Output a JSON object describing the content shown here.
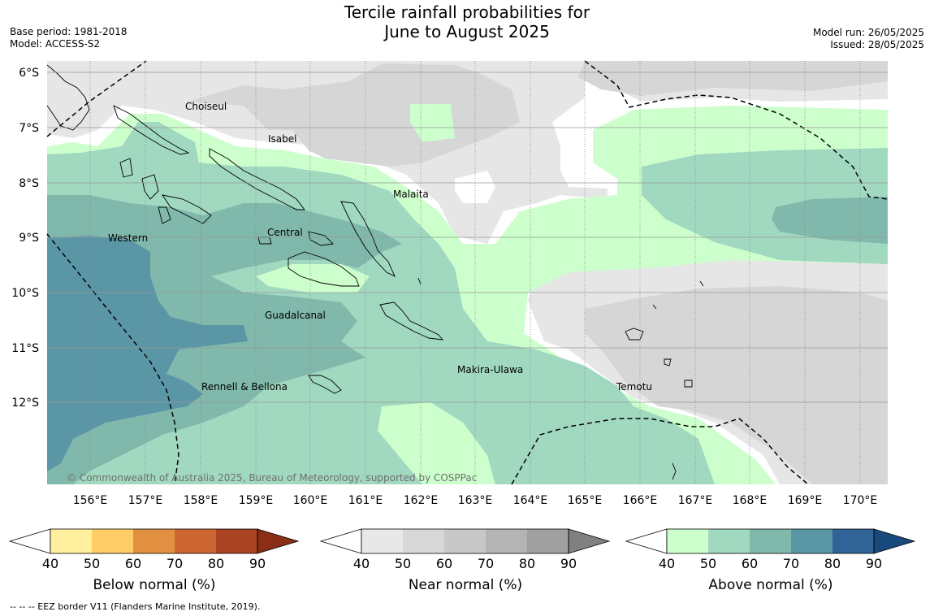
{
  "header": {
    "title_line1": "Tercile rainfall probabilities for",
    "title_line2": "June to August 2025",
    "base_period": "Base period: 1981-2018",
    "model": "Model: ACCESS-S2",
    "model_run": "Model run: 26/05/2025",
    "issued": "Issued: 28/05/2025"
  },
  "map": {
    "lat_labels": [
      "6°S",
      "7°S",
      "8°S",
      "9°S",
      "10°S",
      "11°S",
      "12°S"
    ],
    "lon_labels": [
      "156°E",
      "157°E",
      "158°E",
      "159°E",
      "160°E",
      "161°E",
      "162°E",
      "163°E",
      "164°E",
      "165°E",
      "166°E",
      "167°E",
      "168°E",
      "169°E",
      "170°E"
    ],
    "region_labels": {
      "choiseul": "Choiseul",
      "isabel": "Isabel",
      "malaita": "Malaita",
      "western": "Western",
      "central": "Central",
      "guadalcanal": "Guadalcanal",
      "rennell": "Rennell & Bellona",
      "makira": "Makira-Ulawa",
      "temotu": "Temotu"
    },
    "copyright": "© Commonwealth of Australia 2025, Bureau of Meteorology, supported by COSPPac"
  },
  "legend": {
    "ticks": [
      "40",
      "50",
      "60",
      "70",
      "80",
      "90"
    ],
    "below": {
      "title": "Below normal (%)",
      "colors": [
        "#ffffff",
        "#fff0a0",
        "#ffcc66",
        "#e09040",
        "#cc6633",
        "#aa4422",
        "#8b2e16"
      ]
    },
    "near": {
      "title": "Near normal (%)",
      "colors": [
        "#ffffff",
        "#e8e8e8",
        "#d8d8d8",
        "#c8c8c8",
        "#b4b4b4",
        "#a0a0a0",
        "#808080"
      ]
    },
    "above": {
      "title": "Above normal (%)",
      "colors": [
        "#ffffff",
        "#ccffcc",
        "#a0d8c0",
        "#80b8ac",
        "#5a96a6",
        "#306496",
        "#184a7e"
      ]
    }
  },
  "footnote": "-- -- -- EEZ border V11 (Flanders Marine Institute, 2019)."
}
